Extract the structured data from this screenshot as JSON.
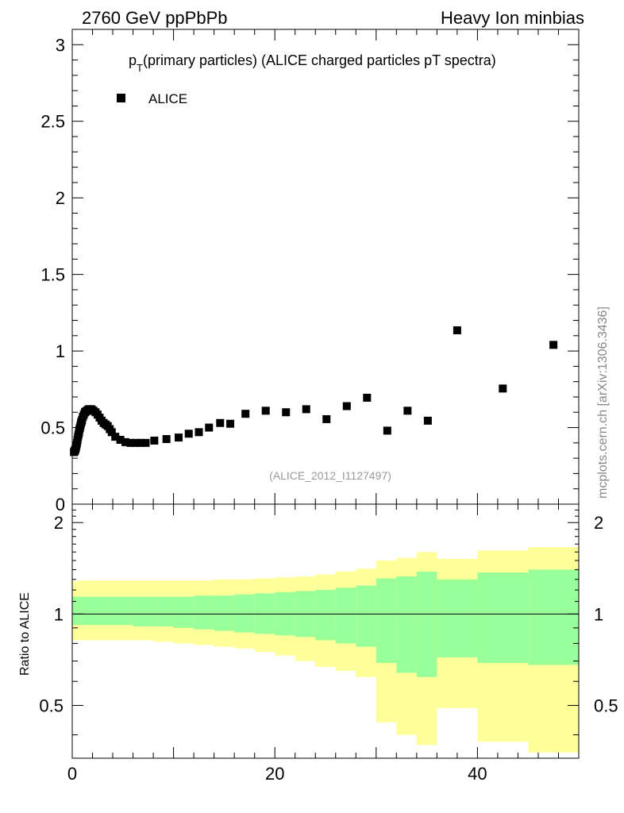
{
  "header": {
    "energy_label": "2760 GeV ppPbPb",
    "process_label": "Heavy Ion minbias"
  },
  "side_credit": "mcplots.cern.ch [arXiv:1306.3436]",
  "colors": {
    "marker": "#000000",
    "band_outer": "#ffff99",
    "band_inner": "#99ff99",
    "reference_line": "#000000",
    "watermark": "#999999"
  },
  "chart_data": [
    {
      "panel": "main",
      "type": "scatter",
      "title_main": "p",
      "title_sub": "T",
      "title_rest": "(primary particles) (ALICE charged particles pT spectra)",
      "legend": [
        {
          "label": "ALICE",
          "marker": "square",
          "color": "#000000"
        }
      ],
      "legend_position": "top-left",
      "watermark": "(ALICE_2012_I1127497)",
      "xlim": [
        0,
        50
      ],
      "ylim": [
        0,
        3.1
      ],
      "yticks": [
        0,
        0.5,
        1,
        1.5,
        2,
        2.5,
        3
      ],
      "ytick_labels": [
        "0",
        "0.5",
        "1",
        "1.5",
        "2",
        "2.5",
        "3"
      ],
      "series": [
        {
          "name": "ALICE",
          "x": [
            0.17,
            0.22,
            0.27,
            0.32,
            0.37,
            0.42,
            0.47,
            0.52,
            0.57,
            0.62,
            0.67,
            0.72,
            0.77,
            0.82,
            0.87,
            0.92,
            0.97,
            1.05,
            1.15,
            1.25,
            1.35,
            1.45,
            1.55,
            1.65,
            1.75,
            1.85,
            1.95,
            2.1,
            2.3,
            2.5,
            2.7,
            2.9,
            3.1,
            3.3,
            3.5,
            3.7,
            3.9,
            4.25,
            4.75,
            5.25,
            5.75,
            6.25,
            6.75,
            7.25,
            8.1,
            9.3,
            10.5,
            11.5,
            12.5,
            13.5,
            14.6,
            15.6,
            17.1,
            19.1,
            21.1,
            23.1,
            25.1,
            27.1,
            29.1,
            31.1,
            33.1,
            35.1,
            38.0,
            42.5,
            47.5
          ],
          "y": [
            0.34,
            0.345,
            0.35,
            0.36,
            0.37,
            0.385,
            0.4,
            0.42,
            0.44,
            0.455,
            0.47,
            0.49,
            0.5,
            0.515,
            0.53,
            0.54,
            0.55,
            0.57,
            0.585,
            0.6,
            0.605,
            0.61,
            0.615,
            0.62,
            0.62,
            0.62,
            0.615,
            0.61,
            0.6,
            0.585,
            0.565,
            0.545,
            0.53,
            0.52,
            0.51,
            0.49,
            0.47,
            0.44,
            0.42,
            0.405,
            0.4,
            0.4,
            0.4,
            0.4,
            0.415,
            0.425,
            0.435,
            0.46,
            0.47,
            0.5,
            0.53,
            0.525,
            0.59,
            0.61,
            0.6,
            0.62,
            0.555,
            0.64,
            0.695,
            0.48,
            0.61,
            0.545,
            1.135,
            0.755,
            1.04
          ]
        }
      ]
    },
    {
      "panel": "ratio",
      "type": "area",
      "ylabel": "Ratio to ALICE",
      "xlim": [
        0,
        50
      ],
      "ylim": [
        0.335,
        2.3
      ],
      "xticks": [
        0,
        20,
        40
      ],
      "xtick_labels": [
        "0",
        "20",
        "40"
      ],
      "ytick_labels": [
        "0.5",
        "1",
        "2"
      ],
      "ytick_values": [
        0.5,
        1,
        2
      ],
      "reference_value": 1,
      "bins_x_edges": [
        0,
        0.5,
        1,
        2,
        4,
        6,
        8,
        10,
        12,
        14,
        16,
        18,
        20,
        22,
        24,
        26,
        28,
        30,
        32,
        34,
        36,
        40,
        45,
        50
      ],
      "outer_band_hi": [
        1.28,
        1.29,
        1.29,
        1.29,
        1.29,
        1.29,
        1.29,
        1.29,
        1.29,
        1.3,
        1.3,
        1.31,
        1.32,
        1.33,
        1.35,
        1.38,
        1.41,
        1.5,
        1.53,
        1.6,
        1.52,
        1.62,
        1.66
      ],
      "outer_band_lo": [
        0.82,
        0.82,
        0.82,
        0.82,
        0.82,
        0.82,
        0.81,
        0.8,
        0.79,
        0.78,
        0.77,
        0.75,
        0.73,
        0.7,
        0.67,
        0.65,
        0.62,
        0.44,
        0.4,
        0.37,
        0.49,
        0.38,
        0.35
      ],
      "inner_band_hi": [
        1.14,
        1.14,
        1.14,
        1.14,
        1.14,
        1.14,
        1.14,
        1.14,
        1.15,
        1.15,
        1.16,
        1.17,
        1.18,
        1.19,
        1.2,
        1.22,
        1.24,
        1.31,
        1.33,
        1.38,
        1.3,
        1.37,
        1.4
      ],
      "inner_band_lo": [
        0.92,
        0.92,
        0.92,
        0.92,
        0.92,
        0.91,
        0.91,
        0.9,
        0.89,
        0.88,
        0.87,
        0.86,
        0.85,
        0.84,
        0.82,
        0.8,
        0.78,
        0.69,
        0.64,
        0.62,
        0.72,
        0.69,
        0.68
      ]
    }
  ]
}
